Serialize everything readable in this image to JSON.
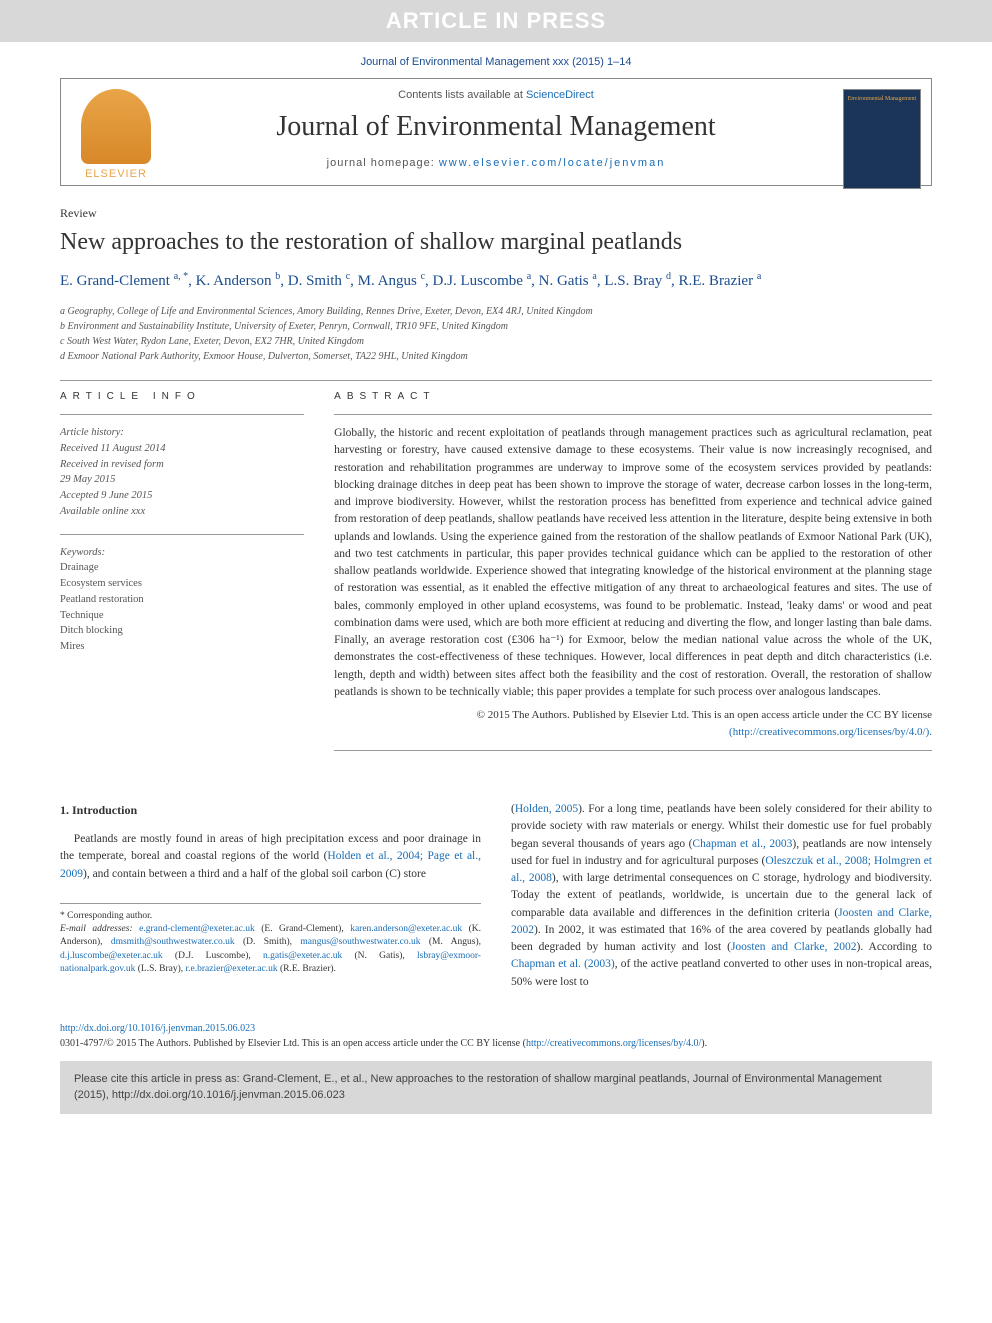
{
  "banner": {
    "text": "ARTICLE IN PRESS"
  },
  "topCitation": "Journal of Environmental Management xxx (2015) 1–14",
  "header": {
    "contentsLine_pre": "Contents lists available at ",
    "contentsLine_link": "ScienceDirect",
    "journalName": "Journal of Environmental Management",
    "homepage_pre": "journal homepage: ",
    "homepage_link": "www.elsevier.com/locate/jenvman",
    "elsevierLabel": "ELSEVIER",
    "coverTitle": "Environmental Management"
  },
  "article": {
    "type": "Review",
    "title": "New approaches to the restoration of shallow marginal peatlands",
    "authors_html": "E. Grand-Clement <sup>a, *</sup>, K. Anderson <sup>b</sup>, D. Smith <sup>c</sup>, M. Angus <sup>c</sup>, D.J. Luscombe <sup>a</sup>, N. Gatis <sup>a</sup>, L.S. Bray <sup>d</sup>, R.E. Brazier <sup>a</sup>",
    "affiliations": [
      "a Geography, College of Life and Environmental Sciences, Amory Building, Rennes Drive, Exeter, Devon, EX4 4RJ, United Kingdom",
      "b Environment and Sustainability Institute, University of Exeter, Penryn, Cornwall, TR10 9FE, United Kingdom",
      "c South West Water, Rydon Lane, Exeter, Devon, EX2 7HR, United Kingdom",
      "d Exmoor National Park Authority, Exmoor House, Dulverton, Somerset, TA22 9HL, United Kingdom"
    ]
  },
  "info": {
    "label": "ARTICLE INFO",
    "history_label": "Article history:",
    "history": [
      "Received 11 August 2014",
      "Received in revised form",
      "29 May 2015",
      "Accepted 9 June 2015",
      "Available online xxx"
    ],
    "keywords_label": "Keywords:",
    "keywords": [
      "Drainage",
      "Ecosystem services",
      "Peatland restoration",
      "Technique",
      "Ditch blocking",
      "Mires"
    ]
  },
  "abstract": {
    "label": "ABSTRACT",
    "text": "Globally, the historic and recent exploitation of peatlands through management practices such as agricultural reclamation, peat harvesting or forestry, have caused extensive damage to these ecosystems. Their value is now increasingly recognised, and restoration and rehabilitation programmes are underway to improve some of the ecosystem services provided by peatlands: blocking drainage ditches in deep peat has been shown to improve the storage of water, decrease carbon losses in the long-term, and improve biodiversity. However, whilst the restoration process has benefitted from experience and technical advice gained from restoration of deep peatlands, shallow peatlands have received less attention in the literature, despite being extensive in both uplands and lowlands. Using the experience gained from the restoration of the shallow peatlands of Exmoor National Park (UK), and two test catchments in particular, this paper provides technical guidance which can be applied to the restoration of other shallow peatlands worldwide. Experience showed that integrating knowledge of the historical environment at the planning stage of restoration was essential, as it enabled the effective mitigation of any threat to archaeological features and sites. The use of bales, commonly employed in other upland ecosystems, was found to be problematic. Instead, 'leaky dams' or wood and peat combination dams were used, which are both more efficient at reducing and diverting the flow, and longer lasting than bale dams. Finally, an average restoration cost (£306 ha⁻¹) for Exmoor, below the median national value across the whole of the UK, demonstrates the cost-effectiveness of these techniques. However, local differences in peat depth and ditch characteristics (i.e. length, depth and width) between sites affect both the feasibility and the cost of restoration. Overall, the restoration of shallow peatlands is shown to be technically viable; this paper provides a template for such process over analogous landscapes.",
    "copyright_pre": "© 2015 The Authors. Published by Elsevier Ltd. This is an open access article under the CC BY license",
    "copyright_link": "(http://creativecommons.org/licenses/by/4.0/)."
  },
  "body": {
    "section_num": "1.",
    "section_title": "Introduction",
    "col1_p1_a": "Peatlands are mostly found in areas of high precipitation excess and poor drainage in the temperate, boreal and coastal regions of the world (",
    "col1_p1_ref1": "Holden et al., 2004; Page et al., 2009",
    "col1_p1_b": "), and contain between a third and a half of the global soil carbon (C) store",
    "col2_p1_a": "(",
    "col2_ref1": "Holden, 2005",
    "col2_p1_b": "). For a long time, peatlands have been solely considered for their ability to provide society with raw materials or energy. Whilst their domestic use for fuel probably began several thousands of years ago (",
    "col2_ref2": "Chapman et al., 2003",
    "col2_p1_c": "), peatlands are now intensely used for fuel in industry and for agricultural purposes (",
    "col2_ref3": "Oleszczuk et al., 2008; Holmgren et al., 2008",
    "col2_p1_d": "), with large detrimental consequences on C storage, hydrology and biodiversity. Today the extent of peatlands, worldwide, is uncertain due to the general lack of comparable data available and differences in the definition criteria (",
    "col2_ref4": "Joosten and Clarke, 2002",
    "col2_p1_e": "). In 2002, it was estimated that 16% of the area covered by peatlands globally had been degraded by human activity and lost (",
    "col2_ref5": "Joosten and Clarke, 2002",
    "col2_p1_f": "). According to ",
    "col2_ref6": "Chapman et al. (2003)",
    "col2_p1_g": ", of the active peatland converted to other uses in non-tropical areas, 50% were lost to"
  },
  "footnote": {
    "corr": "* Corresponding author.",
    "emails_label": "E-mail addresses: ",
    "emails": [
      {
        "addr": "e.grand-clement@exeter.ac.uk",
        "who": " (E. Grand-Clement), "
      },
      {
        "addr": "karen.anderson@exeter.ac.uk",
        "who": " (K. Anderson), "
      },
      {
        "addr": "dmsmith@southwestwater.co.uk",
        "who": " (D. Smith), "
      },
      {
        "addr": "mangus@southwestwater.co.uk",
        "who": " (M. Angus), "
      },
      {
        "addr": "d.j.luscombe@exeter.ac.uk",
        "who": " (D.J. Luscombe), "
      },
      {
        "addr": "n.gatis@exeter.ac.uk",
        "who": " (N. Gatis), "
      },
      {
        "addr": "lsbray@exmoor-nationalpark.gov.uk",
        "who": " (L.S. Bray), "
      },
      {
        "addr": "r.e.brazier@exeter.ac.uk",
        "who": " (R.E. Brazier)."
      }
    ]
  },
  "doi": {
    "link": "http://dx.doi.org/10.1016/j.jenvman.2015.06.023",
    "issn_line_a": "0301-4797/© 2015 The Authors. Published by Elsevier Ltd. This is an open access article under the CC BY license (",
    "issn_link": "http://creativecommons.org/licenses/by/4.0/",
    "issn_line_b": ")."
  },
  "citeBox": "Please cite this article in press as: Grand-Clement, E., et al., New approaches to the restoration of shallow marginal peatlands, Journal of Environmental Management (2015), http://dx.doi.org/10.1016/j.jenvman.2015.06.023",
  "colors": {
    "banner_bg": "#d8d8d8",
    "link": "#1a6db5",
    "author": "#1a4d8f",
    "elsevier": "#e8a548",
    "cover_bg": "#1a3558"
  }
}
